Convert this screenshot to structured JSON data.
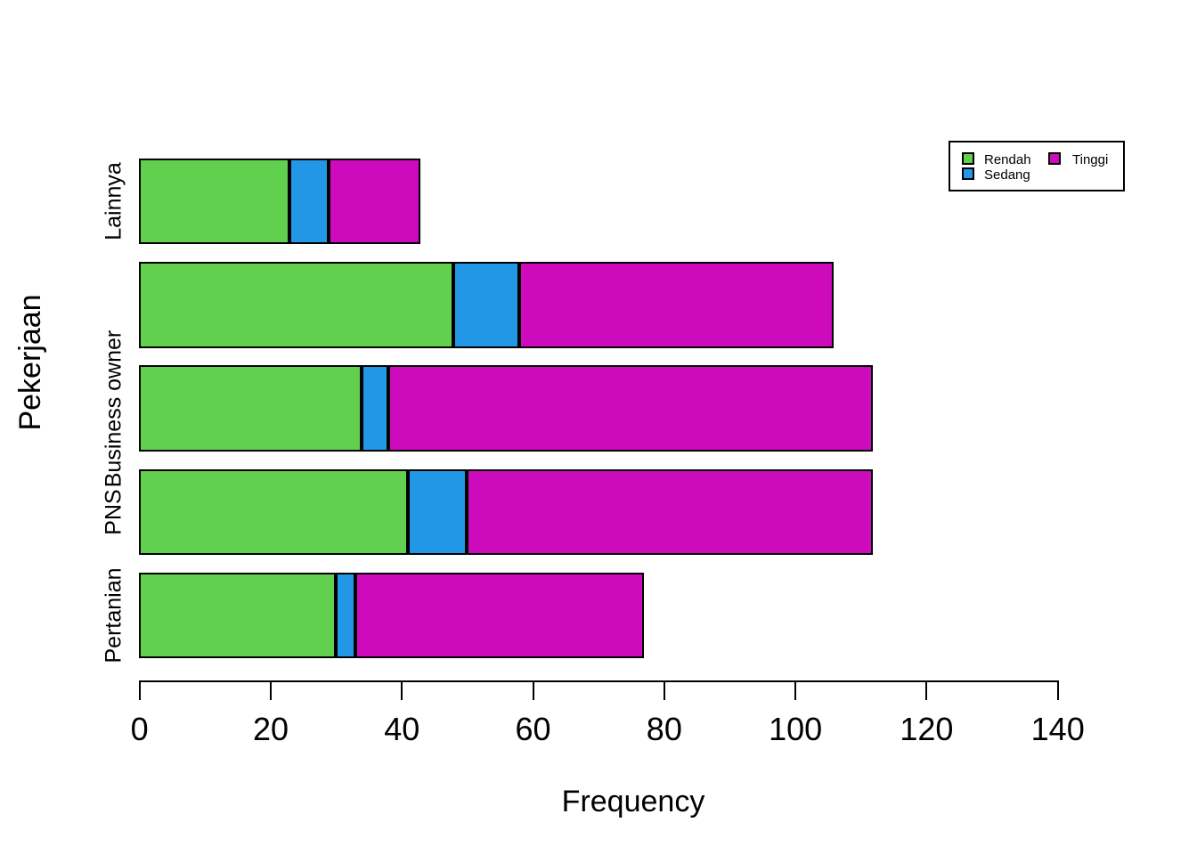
{
  "chart_data": {
    "type": "bar",
    "orientation": "horizontal",
    "stacked": true,
    "title": "",
    "xlabel": "Frequency",
    "ylabel": "Pekerjaan",
    "xlim": [
      0,
      140
    ],
    "x_ticks": [
      0,
      20,
      40,
      60,
      80,
      100,
      120,
      140
    ],
    "grid": false,
    "background": "#FFFFFF",
    "bar_border_color": "#000000",
    "category_order": "top-to-bottom",
    "categories": [
      "Lainnya",
      "",
      "Business owner",
      "PNS",
      "Pertanian"
    ],
    "series": [
      {
        "name": "Rendah",
        "color": "#61D04F",
        "values": [
          23,
          48,
          34,
          41,
          30
        ]
      },
      {
        "name": "Sedang",
        "color": "#2297E6",
        "values": [
          6,
          10,
          4,
          9,
          3
        ]
      },
      {
        "name": "Tinggi",
        "color": "#CD0BBC",
        "values": [
          14,
          48,
          74,
          62,
          44
        ]
      }
    ],
    "totals": [
      43,
      106,
      112,
      112,
      77
    ],
    "legend": {
      "position": "top-right",
      "columns": 2,
      "entries": [
        "Rendah",
        "Sedang",
        "Tinggi"
      ]
    }
  }
}
